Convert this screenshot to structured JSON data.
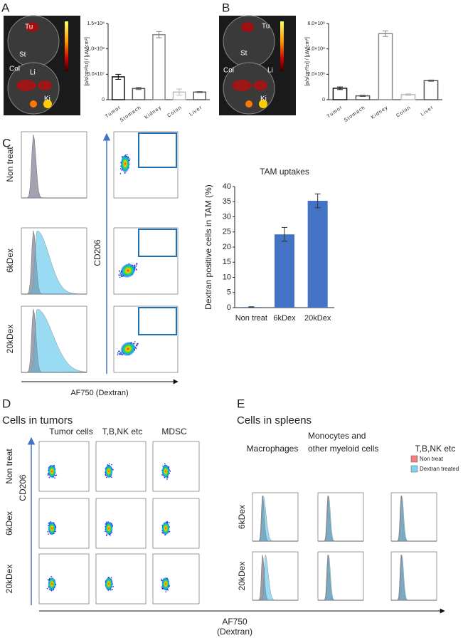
{
  "chart_data": [
    {
      "type": "bar",
      "y_label": "[p/s/cm²/sr] / [µW/cm²]",
      "categories": [
        "Tumor",
        "Stomach",
        "Kidney",
        "Colon",
        "Liver"
      ],
      "values": [
        45000000,
        22000000,
        128000000,
        15000000,
        15000000
      ],
      "errors": [
        5000000,
        2000000,
        6000000,
        6000000,
        1000000
      ],
      "colors": [
        "#111111",
        "#555555",
        "#888888",
        "#bbbbbb",
        "#555555"
      ],
      "filled": false,
      "ylim": [
        0,
        150000000
      ],
      "yticks": [
        0,
        {
          "value": 50000000,
          "label": "5.0×10⁷"
        },
        {
          "value": 100000000,
          "label": "1.0×10⁸"
        },
        {
          "value": 150000000,
          "label": "1.5×10⁸"
        }
      ]
    },
    {
      "type": "bar",
      "y_label": "[p/s/cm²/sr] / [µW/cm²]",
      "categories": [
        "Tumor",
        "Stomach",
        "Kidney",
        "Colon",
        "Liver"
      ],
      "values": [
        90000000,
        30000000,
        520000000,
        40000000,
        150000000
      ],
      "errors": [
        10000000,
        5000000,
        22000000,
        6000000,
        5000000
      ],
      "colors": [
        "#111111",
        "#555555",
        "#888888",
        "#bbbbbb",
        "#555555"
      ],
      "filled": false,
      "ylim": [
        0,
        600000000
      ],
      "yticks": [
        0,
        {
          "value": 200000000,
          "label": "2.0×10⁸"
        },
        {
          "value": 400000000,
          "label": "4.0×10⁸"
        },
        {
          "value": 600000000,
          "label": "6.0×10⁸"
        }
      ]
    },
    {
      "type": "bar",
      "title": "TAM uptakes",
      "y_label": "Dextran positive cells in TAM (%)",
      "categories": [
        "Non treat",
        "6kDex",
        "20kDex"
      ],
      "values": [
        0.2,
        24.2,
        35.3
      ],
      "errors": [
        0.1,
        2.3,
        2.3
      ],
      "colors": [
        "#4472c4",
        "#4472c4",
        "#4472c4"
      ],
      "filled": true,
      "ylim": [
        0,
        40
      ],
      "yticks": [
        0,
        5,
        10,
        15,
        20,
        25,
        30,
        35,
        40
      ]
    }
  ],
  "panel_labels": [
    "A",
    "B",
    "C",
    "D",
    "E"
  ],
  "organ_labels_a": [
    "Tu",
    "St",
    "Li",
    "Col",
    "Ki"
  ],
  "organ_labels_b": [
    "Tu",
    "St",
    "Col",
    "Li",
    "Ki"
  ],
  "panel_c": {
    "row_labels": [
      "Non treat",
      "6kDex",
      "20kDex"
    ],
    "y_axis": "CD206",
    "x_axis": "AF750 (Dextran)"
  },
  "panel_d": {
    "title": "Cells in tumors",
    "columns": [
      "Tumor cells",
      "T,B,NK etc",
      "MDSC"
    ],
    "row_labels": [
      "Non treat",
      "6kDex",
      "20kDex"
    ],
    "y_axis": "CD206"
  },
  "panel_e": {
    "title": "Cells in spleens",
    "columns": [
      "Macrophages",
      "Monocytes and",
      "other myeloid cells",
      "T,B,NK etc"
    ],
    "legend": [
      {
        "name": "Non treat",
        "color": "#f08080"
      },
      {
        "name": "Dextran treated",
        "color": "#7fd3f0"
      }
    ],
    "row_labels": [
      "6kDex",
      "20kDex"
    ]
  },
  "shared_x_axis": [
    "AF750",
    "(Dextran)"
  ]
}
